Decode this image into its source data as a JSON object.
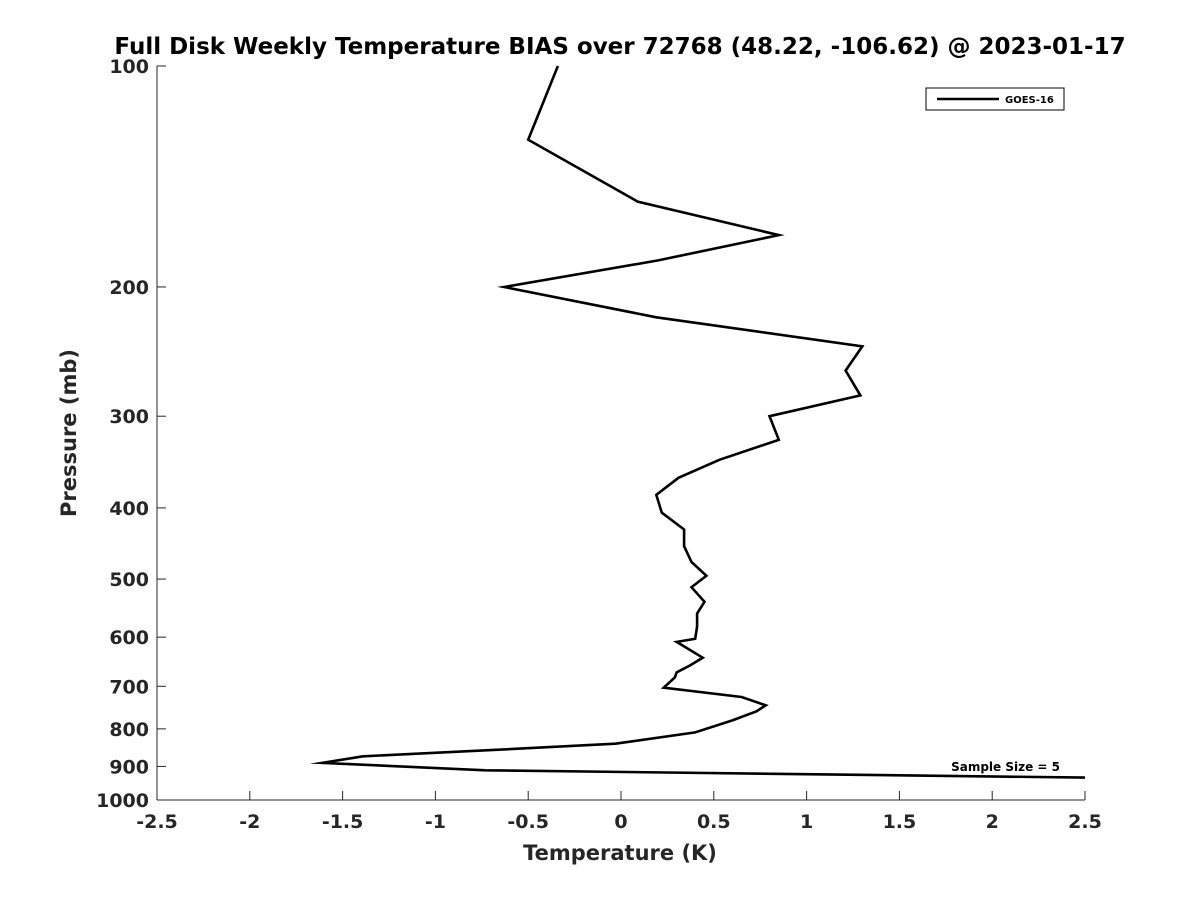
{
  "chart_data": {
    "type": "line",
    "title": "Full Disk Weekly Temperature BIAS over 72768 (48.22, -106.62) @ 2023-01-17",
    "xlabel": "Temperature (K)",
    "ylabel": "Pressure (mb)",
    "xlim": [
      -2.5,
      2.5
    ],
    "ylim": [
      100,
      1000
    ],
    "y_scale": "log",
    "y_reversed": true,
    "grid": false,
    "legend_position": "top-right",
    "x_ticks": [
      -2.5,
      -2,
      -1.5,
      -1,
      -0.5,
      0,
      0.5,
      1,
      1.5,
      2,
      2.5
    ],
    "x_tick_labels": [
      "-2.5",
      "-2",
      "-1.5",
      "-1",
      "-0.5",
      "0",
      "0.5",
      "1",
      "1.5",
      "2",
      "2.5"
    ],
    "y_ticks": [
      100,
      200,
      300,
      400,
      500,
      600,
      700,
      800,
      900,
      1000
    ],
    "y_tick_labels": [
      "100",
      "200",
      "300",
      "400",
      "500",
      "600",
      "700",
      "800",
      "900",
      "1000"
    ],
    "annotation": "Sample Size = 5",
    "series": [
      {
        "name": "GOES-16",
        "color": "#000000",
        "points": [
          {
            "x": -0.34,
            "y": 100
          },
          {
            "x": -0.5,
            "y": 126
          },
          {
            "x": 0.09,
            "y": 153
          },
          {
            "x": 0.85,
            "y": 170
          },
          {
            "x": 0.2,
            "y": 184
          },
          {
            "x": -0.63,
            "y": 200
          },
          {
            "x": 0.19,
            "y": 220
          },
          {
            "x": 1.3,
            "y": 241
          },
          {
            "x": 1.21,
            "y": 260
          },
          {
            "x": 1.29,
            "y": 281
          },
          {
            "x": 0.8,
            "y": 300
          },
          {
            "x": 0.85,
            "y": 323
          },
          {
            "x": 0.53,
            "y": 344
          },
          {
            "x": 0.31,
            "y": 364
          },
          {
            "x": 0.19,
            "y": 384
          },
          {
            "x": 0.22,
            "y": 406
          },
          {
            "x": 0.34,
            "y": 428
          },
          {
            "x": 0.34,
            "y": 451
          },
          {
            "x": 0.38,
            "y": 474
          },
          {
            "x": 0.46,
            "y": 495
          },
          {
            "x": 0.38,
            "y": 513
          },
          {
            "x": 0.45,
            "y": 537
          },
          {
            "x": 0.41,
            "y": 557
          },
          {
            "x": 0.41,
            "y": 580
          },
          {
            "x": 0.4,
            "y": 603
          },
          {
            "x": 0.3,
            "y": 609
          },
          {
            "x": 0.44,
            "y": 640
          },
          {
            "x": 0.37,
            "y": 656
          },
          {
            "x": 0.3,
            "y": 670
          },
          {
            "x": 0.29,
            "y": 681
          },
          {
            "x": 0.23,
            "y": 703
          },
          {
            "x": 0.65,
            "y": 724
          },
          {
            "x": 0.78,
            "y": 743
          },
          {
            "x": 0.73,
            "y": 757
          },
          {
            "x": 0.6,
            "y": 779
          },
          {
            "x": 0.4,
            "y": 809
          },
          {
            "x": -0.03,
            "y": 838
          },
          {
            "x": -0.7,
            "y": 855
          },
          {
            "x": -1.39,
            "y": 872
          },
          {
            "x": -1.61,
            "y": 890
          },
          {
            "x": -0.73,
            "y": 911
          },
          {
            "x": 2.5,
            "y": 932
          }
        ]
      }
    ]
  }
}
